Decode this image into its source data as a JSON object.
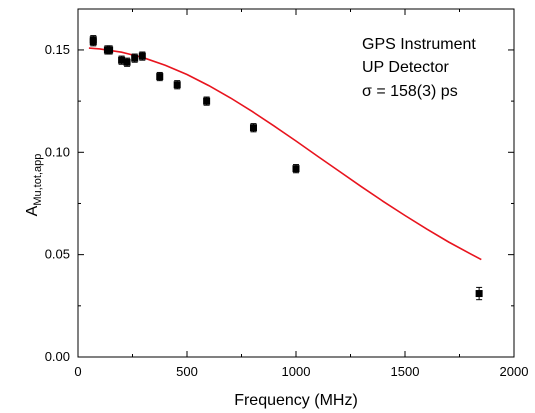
{
  "chart_data": {
    "type": "scatter",
    "xlabel": "Frequency (MHz)",
    "ylabel_main": "A",
    "ylabel_sub": "Mu,tot,app",
    "xlim": [
      0,
      2000
    ],
    "ylim": [
      0.0,
      0.17
    ],
    "x_ticks": [
      0,
      500,
      1000,
      1500,
      2000
    ],
    "x_tick_labels": [
      "0",
      "500",
      "1000",
      "1500",
      "2000"
    ],
    "y_ticks": [
      0.0,
      0.05,
      0.1,
      0.15
    ],
    "y_tick_labels": [
      "0.00",
      "0.05",
      "0.10",
      "0.15"
    ],
    "annotations": [
      "GPS Instrument",
      "UP Detector",
      "σ = 158(3) ps"
    ],
    "grid": false,
    "points": [
      {
        "x": 70,
        "y": 0.155,
        "err": 0.002
      },
      {
        "x": 70,
        "y": 0.154,
        "err": 0.002
      },
      {
        "x": 135,
        "y": 0.15,
        "err": 0.002
      },
      {
        "x": 145,
        "y": 0.15,
        "err": 0.002
      },
      {
        "x": 200,
        "y": 0.145,
        "err": 0.002
      },
      {
        "x": 225,
        "y": 0.144,
        "err": 0.002
      },
      {
        "x": 260,
        "y": 0.146,
        "err": 0.002
      },
      {
        "x": 295,
        "y": 0.147,
        "err": 0.002
      },
      {
        "x": 375,
        "y": 0.137,
        "err": 0.002
      },
      {
        "x": 455,
        "y": 0.133,
        "err": 0.002
      },
      {
        "x": 590,
        "y": 0.125,
        "err": 0.002
      },
      {
        "x": 805,
        "y": 0.112,
        "err": 0.002
      },
      {
        "x": 1000,
        "y": 0.092,
        "err": 0.002
      },
      {
        "x": 1840,
        "y": 0.031,
        "err": 0.003
      }
    ],
    "fit": {
      "color": "#e8141e",
      "x": [
        50,
        100,
        200,
        300,
        400,
        500,
        600,
        700,
        800,
        900,
        1000,
        1100,
        1200,
        1300,
        1400,
        1500,
        1600,
        1700,
        1800,
        1850
      ],
      "y": [
        0.1509,
        0.1505,
        0.1489,
        0.1462,
        0.1425,
        0.138,
        0.1326,
        0.1265,
        0.1199,
        0.1128,
        0.1055,
        0.098,
        0.0906,
        0.0832,
        0.076,
        0.0691,
        0.0625,
        0.0562,
        0.0504,
        0.0476
      ]
    },
    "marker_color": "#000000"
  }
}
